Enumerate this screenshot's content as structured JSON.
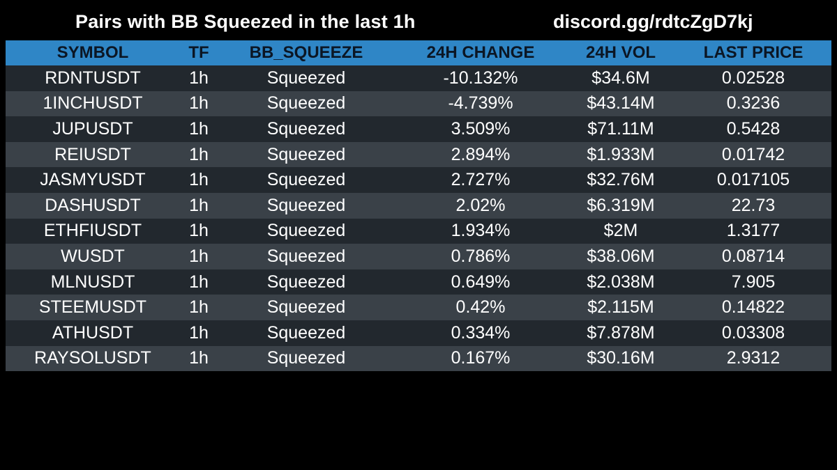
{
  "header": {
    "title": "Pairs with BB Squeezed in the last 1h",
    "link": "discord.gg/rdtcZgD7kj"
  },
  "colors": {
    "background": "#000000",
    "header_row": "#2f86c6",
    "row_dark": "#22282e",
    "row_light": "#3a4148"
  },
  "table": {
    "columns": [
      "SYMBOL",
      "TF",
      "BB_SQUEEZE",
      "24H CHANGE",
      "24H VOL",
      "LAST PRICE"
    ],
    "rows": [
      {
        "symbol": "RDNTUSDT",
        "tf": "1h",
        "bb": "Squeezed",
        "change": "-10.132%",
        "vol": "$34.6M",
        "price": "0.02528"
      },
      {
        "symbol": "1INCHUSDT",
        "tf": "1h",
        "bb": "Squeezed",
        "change": "-4.739%",
        "vol": "$43.14M",
        "price": "0.3236"
      },
      {
        "symbol": "JUPUSDT",
        "tf": "1h",
        "bb": "Squeezed",
        "change": "3.509%",
        "vol": "$71.11M",
        "price": "0.5428"
      },
      {
        "symbol": "REIUSDT",
        "tf": "1h",
        "bb": "Squeezed",
        "change": "2.894%",
        "vol": "$1.933M",
        "price": "0.01742"
      },
      {
        "symbol": "JASMYUSDT",
        "tf": "1h",
        "bb": "Squeezed",
        "change": "2.727%",
        "vol": "$32.76M",
        "price": "0.017105"
      },
      {
        "symbol": "DASHUSDT",
        "tf": "1h",
        "bb": "Squeezed",
        "change": "2.02%",
        "vol": "$6.319M",
        "price": "22.73"
      },
      {
        "symbol": "ETHFIUSDT",
        "tf": "1h",
        "bb": "Squeezed",
        "change": "1.934%",
        "vol": "$2M",
        "price": "1.3177"
      },
      {
        "symbol": "WUSDT",
        "tf": "1h",
        "bb": "Squeezed",
        "change": "0.786%",
        "vol": "$38.06M",
        "price": "0.08714"
      },
      {
        "symbol": "MLNUSDT",
        "tf": "1h",
        "bb": "Squeezed",
        "change": "0.649%",
        "vol": "$2.038M",
        "price": "7.905"
      },
      {
        "symbol": "STEEMUSDT",
        "tf": "1h",
        "bb": "Squeezed",
        "change": "0.42%",
        "vol": "$2.115M",
        "price": "0.14822"
      },
      {
        "symbol": "ATHUSDT",
        "tf": "1h",
        "bb": "Squeezed",
        "change": "0.334%",
        "vol": "$7.878M",
        "price": "0.03308"
      },
      {
        "symbol": "RAYSOLUSDT",
        "tf": "1h",
        "bb": "Squeezed",
        "change": "0.167%",
        "vol": "$30.16M",
        "price": "2.9312"
      }
    ]
  }
}
